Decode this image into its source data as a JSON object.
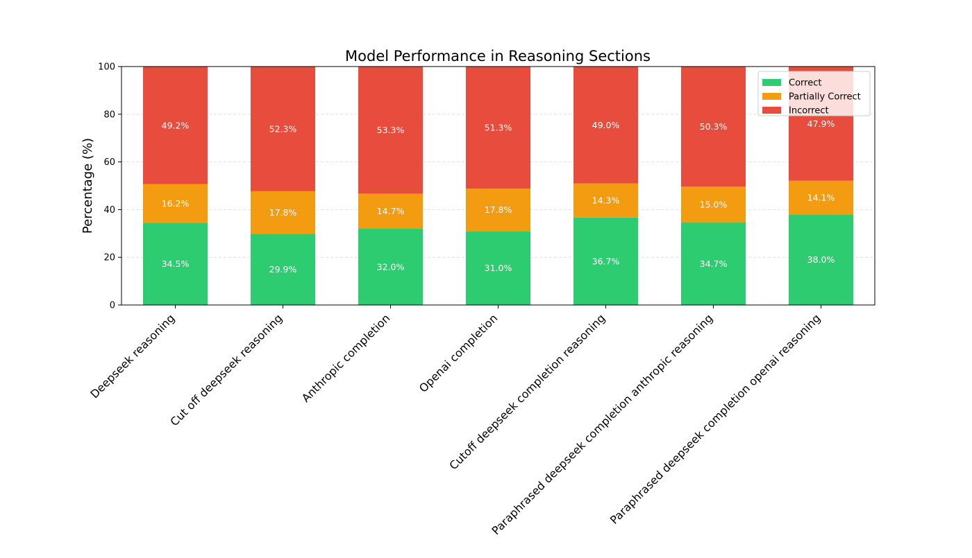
{
  "chart_data": {
    "type": "bar",
    "stacked": true,
    "title": "Model Performance in Reasoning Sections",
    "xlabel": "",
    "ylabel": "Percentage (%)",
    "ylim": [
      0,
      100
    ],
    "yticks": [
      0,
      20,
      40,
      60,
      80,
      100
    ],
    "grid": "horizontal dashed",
    "legend_position": "top-right",
    "categories": [
      "Deepseek reasoning",
      "Cut off deepseek reasoning",
      "Anthropic completion",
      "Openai completion",
      "Cutoff deepseek completion reasoning",
      "Paraphrased deepseek completion anthropic reasoning",
      "Paraphrased deepseek completion openai reasoning"
    ],
    "series": [
      {
        "name": "Correct",
        "color": "#2ecc71",
        "values": [
          34.5,
          29.9,
          32.0,
          31.0,
          36.7,
          34.7,
          38.0
        ],
        "labels": [
          "34.5%",
          "29.9%",
          "32.0%",
          "31.0%",
          "36.7%",
          "34.7%",
          "38.0%"
        ]
      },
      {
        "name": "Partially Correct",
        "color": "#f39c12",
        "values": [
          16.2,
          17.8,
          14.7,
          17.8,
          14.3,
          15.0,
          14.1
        ],
        "labels": [
          "16.2%",
          "17.8%",
          "14.7%",
          "17.8%",
          "14.3%",
          "15.0%",
          "14.1%"
        ]
      },
      {
        "name": "Incorrect",
        "color": "#e74c3c",
        "values": [
          49.2,
          52.3,
          53.3,
          51.3,
          49.0,
          50.3,
          47.9
        ],
        "labels": [
          "49.2%",
          "52.3%",
          "53.3%",
          "51.3%",
          "49.0%",
          "50.3%",
          "47.9%"
        ]
      }
    ]
  }
}
